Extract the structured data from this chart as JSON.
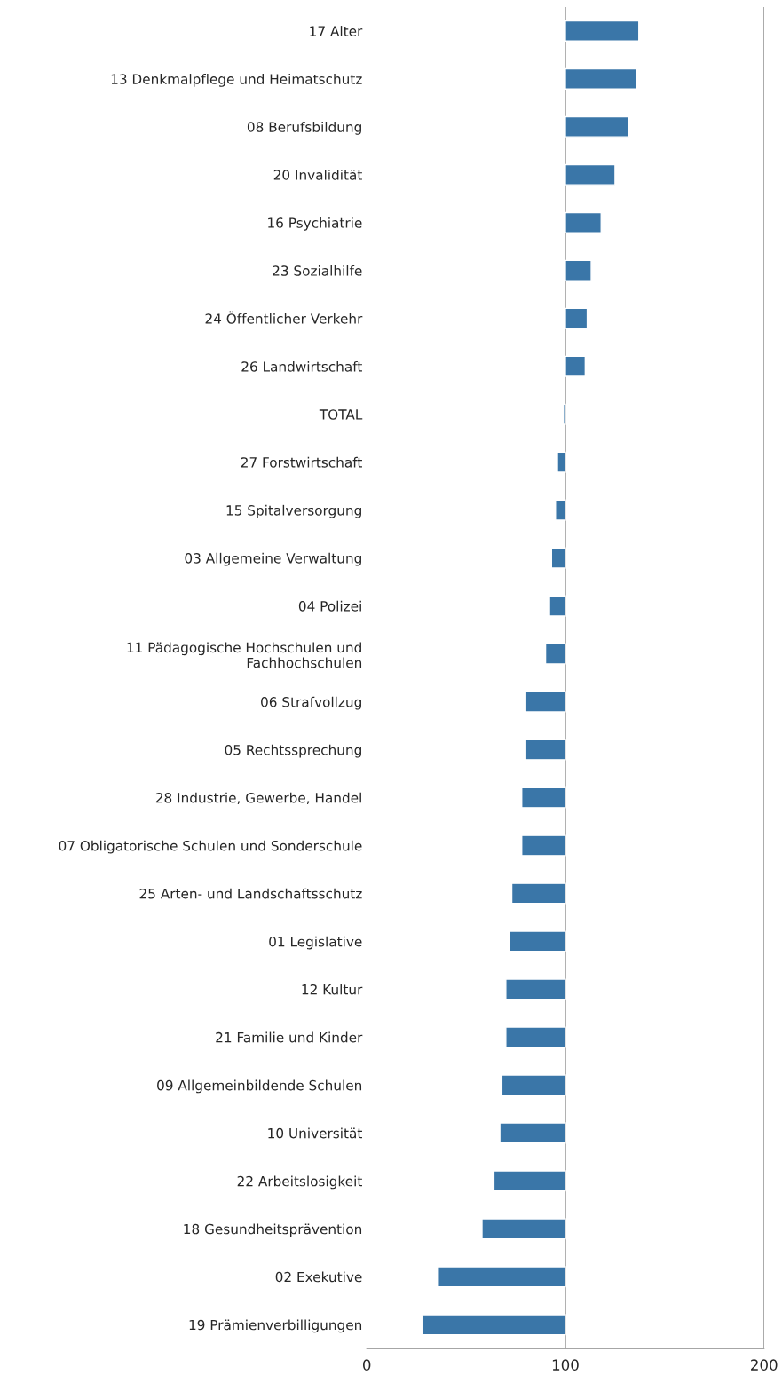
{
  "chart_data": {
    "type": "bar",
    "orientation": "horizontal",
    "color": "#3a76a8",
    "categories": [
      "17 Alter",
      "13 Denkmalpflege und Heimatschutz",
      "08 Berufsbildung",
      "20 Invalidität",
      "16 Psychiatrie",
      "23 Sozialhilfe",
      "24 Öffentlicher Verkehr",
      "26 Landwirtschaft",
      "TOTAL",
      "27 Forstwirtschaft",
      "15 Spitalversorgung",
      "03 Allgemeine Verwaltung",
      "04 Polizei",
      "11 Pädagogische Hochschulen und\nFachhochschulen",
      "06 Strafvollzug",
      "05 Rechtssprechung",
      "28 Industrie, Gewerbe, Handel",
      "07 Obligatorische Schulen und Sonderschule",
      "25 Arten- und Landschaftsschutz",
      "01 Legislative",
      "12 Kultur",
      "21 Familie und Kinder",
      "09 Allgemeinbildende Schulen",
      "10 Universität",
      "22 Arbeitslosigkeit",
      "18 Gesundheitsprävention",
      "02 Exekutive",
      "19 Prämienverbilligungen"
    ],
    "values": [
      37,
      36,
      32,
      25,
      18,
      13,
      11,
      10,
      -1,
      -4,
      -5,
      -7,
      -8,
      -10,
      -20,
      -20,
      -22,
      -22,
      -27,
      -28,
      -30,
      -30,
      -32,
      -33,
      -36,
      -42,
      -64,
      -72
    ],
    "base": [
      100,
      100,
      100,
      100,
      100,
      100,
      100,
      100,
      100,
      100,
      100,
      100,
      100,
      100,
      100,
      100,
      100,
      100,
      100,
      100,
      100,
      100,
      100,
      100,
      100,
      100,
      100,
      100
    ],
    "xlim": [
      0,
      200
    ],
    "xticks": [
      0,
      100,
      200
    ],
    "grid": "x"
  }
}
